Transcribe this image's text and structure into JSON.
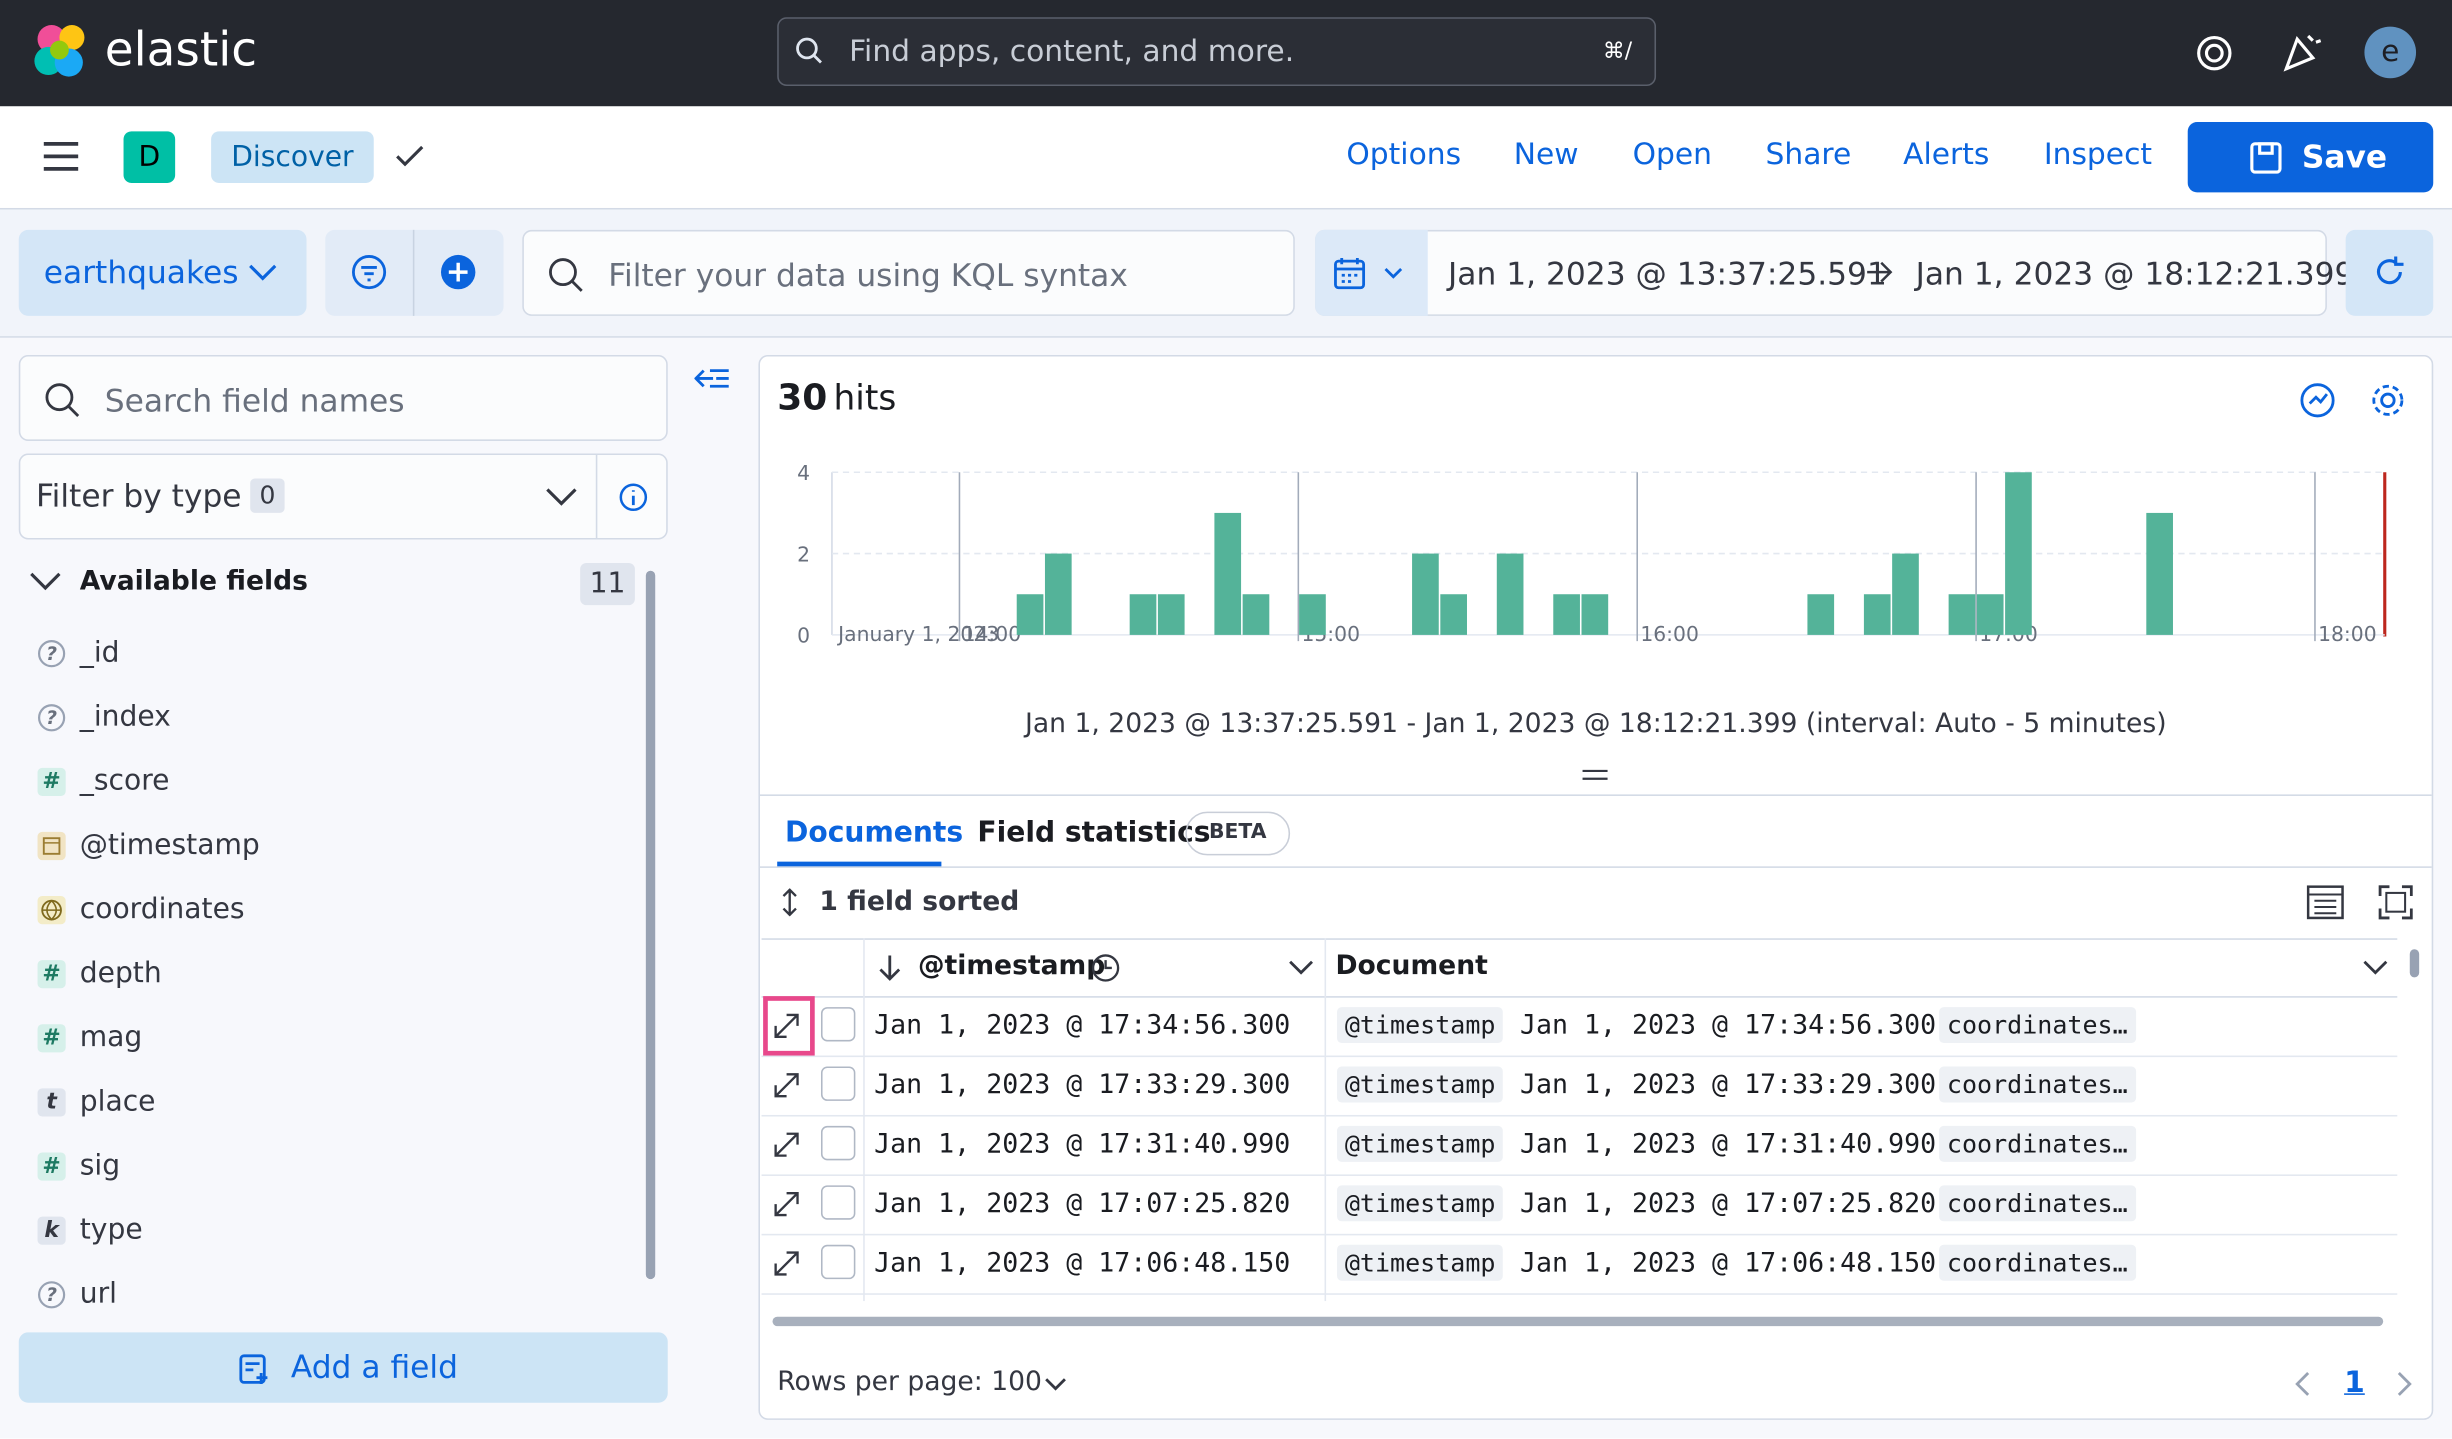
{
  "header": {
    "logo_text": "elastic",
    "search_placeholder": "Find apps, content, and more.",
    "shortcut": "⌘/",
    "avatar": "e"
  },
  "toolbar": {
    "space_badge": "D",
    "app": "Discover",
    "links": [
      "Options",
      "New",
      "Open",
      "Share",
      "Alerts",
      "Inspect"
    ],
    "save": "Save"
  },
  "query": {
    "data_view": "earthquakes",
    "kql_placeholder": "Filter your data using KQL syntax",
    "start_time": "Jan 1, 2023 @ 13:37:25.591",
    "end_time": "Jan 1, 2023 @ 18:12:21.399"
  },
  "sidebar": {
    "search_placeholder": "Search field names",
    "filter_label": "Filter by type",
    "filter_count": "0",
    "section": "Available fields",
    "field_count": "11",
    "fields": [
      {
        "name": "_id",
        "type": "unknown",
        "glyph": "?"
      },
      {
        "name": "_index",
        "type": "unknown",
        "glyph": "?"
      },
      {
        "name": "_score",
        "type": "number",
        "glyph": "#"
      },
      {
        "name": "@timestamp",
        "type": "date"
      },
      {
        "name": "coordinates",
        "type": "geo"
      },
      {
        "name": "depth",
        "type": "number",
        "glyph": "#"
      },
      {
        "name": "mag",
        "type": "number",
        "glyph": "#"
      },
      {
        "name": "place",
        "type": "text",
        "glyph": "t"
      },
      {
        "name": "sig",
        "type": "number",
        "glyph": "#"
      },
      {
        "name": "type",
        "type": "keyword",
        "glyph": "k"
      },
      {
        "name": "url",
        "type": "unknown",
        "glyph": "?"
      }
    ],
    "add_field": "Add a field"
  },
  "main": {
    "hits_count": "30",
    "hits_label": "hits",
    "time_range_caption": "Jan 1, 2023 @ 13:37:25.591 - Jan 1, 2023 @ 18:12:21.399 (interval: Auto - 5 minutes)",
    "tabs": [
      "Documents",
      "Field statistics"
    ],
    "beta": "BETA",
    "sort_label": "1 field sorted",
    "columns": [
      "@timestamp",
      "Document"
    ],
    "rows": [
      {
        "timestamp": "Jan 1, 2023 @ 17:34:56.300",
        "doc_key": "@timestamp",
        "doc_value": "Jan 1, 2023 @ 17:34:56.300",
        "doc_more": "coordinates…"
      },
      {
        "timestamp": "Jan 1, 2023 @ 17:33:29.300",
        "doc_key": "@timestamp",
        "doc_value": "Jan 1, 2023 @ 17:33:29.300",
        "doc_more": "coordinates…"
      },
      {
        "timestamp": "Jan 1, 2023 @ 17:31:40.990",
        "doc_key": "@timestamp",
        "doc_value": "Jan 1, 2023 @ 17:31:40.990",
        "doc_more": "coordinates…"
      },
      {
        "timestamp": "Jan 1, 2023 @ 17:07:25.820",
        "doc_key": "@timestamp",
        "doc_value": "Jan 1, 2023 @ 17:07:25.820",
        "doc_more": "coordinates…"
      },
      {
        "timestamp": "Jan 1, 2023 @ 17:06:48.150",
        "doc_key": "@timestamp",
        "doc_value": "Jan 1, 2023 @ 17:06:48.150",
        "doc_more": "coordinates…"
      }
    ],
    "rows_per_page": "Rows per page: 100",
    "page": "1"
  },
  "chart_data": {
    "type": "bar",
    "color": "#54b399",
    "x_axis_date": "January 1, 2023",
    "bin_minutes": 5,
    "x": [
      850,
      855,
      870,
      875,
      885,
      890,
      900,
      920,
      925,
      935,
      945,
      950,
      990,
      1000,
      1005,
      1015,
      1020,
      1025,
      1050
    ],
    "values": [
      1,
      2,
      1,
      1,
      3,
      1,
      1,
      2,
      1,
      2,
      1,
      1,
      1,
      1,
      2,
      1,
      1,
      4,
      3
    ],
    "xlim": [
      817.42,
      1092.36
    ],
    "xticks": [
      {
        "value": 840,
        "label": "14:00"
      },
      {
        "value": 900,
        "label": "15:00"
      },
      {
        "value": 960,
        "label": "16:00"
      },
      {
        "value": 1020,
        "label": "17:00"
      },
      {
        "value": 1080,
        "label": "18:00"
      }
    ],
    "ylim": [
      0,
      4
    ],
    "yticks": [
      0,
      2,
      4
    ],
    "grid": true
  }
}
